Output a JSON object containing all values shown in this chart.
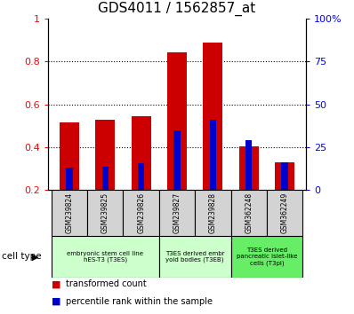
{
  "title": "GDS4011 / 1562857_at",
  "samples": [
    "GSM239824",
    "GSM239825",
    "GSM239826",
    "GSM239827",
    "GSM239828",
    "GSM362248",
    "GSM362249"
  ],
  "transformed_count": [
    0.515,
    0.528,
    0.543,
    0.843,
    0.888,
    0.405,
    0.33
  ],
  "percentile_rank": [
    0.305,
    0.308,
    0.325,
    0.478,
    0.53,
    0.433,
    0.33
  ],
  "bar_color": "#cc0000",
  "percentile_color": "#0000cc",
  "ylim_left": [
    0.2,
    1.0
  ],
  "ylim_right": [
    0,
    100
  ],
  "yticks_left": [
    0.2,
    0.4,
    0.6,
    0.8,
    1.0
  ],
  "yticks_right": [
    0,
    25,
    50,
    75,
    100
  ],
  "ytick_labels_left": [
    "0.2",
    "0.4",
    "0.6",
    "0.8",
    "1"
  ],
  "ytick_labels_right": [
    "0",
    "25",
    "50",
    "75",
    "100%"
  ],
  "cell_type_groups": [
    {
      "label": "embryonic stem cell line\nhES-T3 (T3ES)",
      "start": 0,
      "end": 2,
      "color": "#ccffcc"
    },
    {
      "label": "T3ES derived embr\nyoid bodies (T3EB)",
      "start": 3,
      "end": 4,
      "color": "#ccffcc"
    },
    {
      "label": "T3ES derived\npancreatic islet-like\ncells (T3pi)",
      "start": 5,
      "end": 6,
      "color": "#66ee66"
    }
  ],
  "legend_items": [
    {
      "label": "transformed count",
      "color": "#cc0000"
    },
    {
      "label": "percentile rank within the sample",
      "color": "#0000cc"
    }
  ],
  "cell_type_label": "cell type",
  "bar_width": 0.55,
  "percentile_bar_width": 0.18
}
